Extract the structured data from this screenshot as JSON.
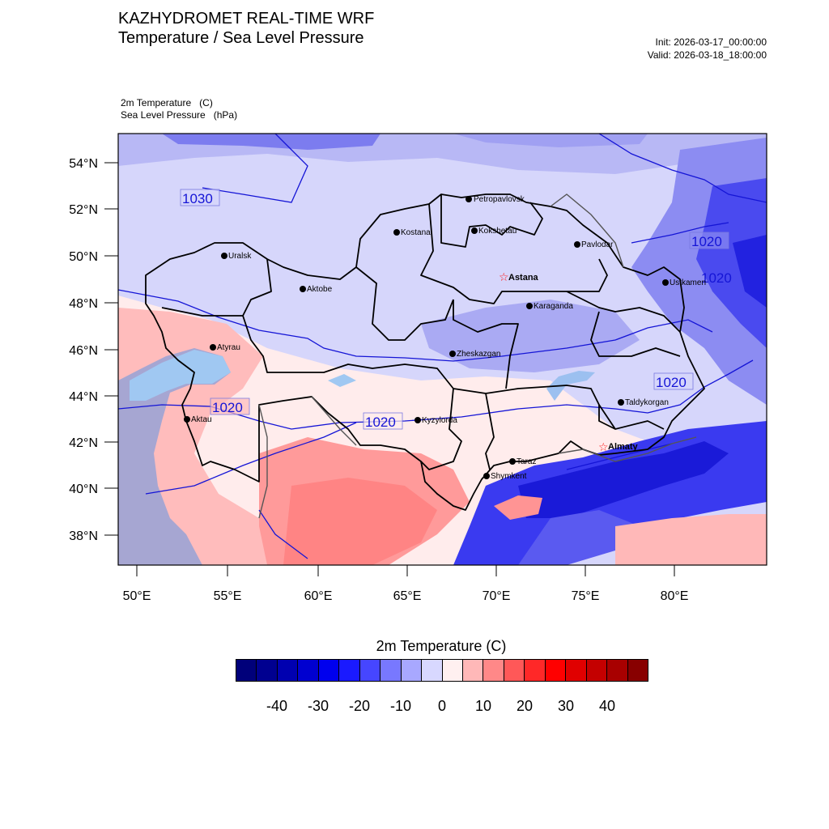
{
  "header": {
    "title_line1": "KAZHYDROMET REAL-TIME WRF",
    "title_line2": "Temperature / Sea Level Pressure",
    "init": "Init: 2026-03-17_00:00:00",
    "valid": "Valid: 2026-03-18_18:00:00"
  },
  "fields": {
    "temperature": "2m Temperature   (C)",
    "pressure": "Sea Level Pressure   (hPa)"
  },
  "map": {
    "lat_ticks": [
      "54°N",
      "52°N",
      "50°N",
      "48°N",
      "46°N",
      "44°N",
      "42°N",
      "40°N",
      "38°N"
    ],
    "lon_ticks": [
      "50°E",
      "55°E",
      "60°E",
      "65°E",
      "70°E",
      "75°E",
      "80°E"
    ],
    "isobar_labels": [
      "1030",
      "1020",
      "1020",
      "1020",
      "1020",
      "1020"
    ],
    "cities": [
      {
        "name": "Petropavlovsk",
        "capital": false
      },
      {
        "name": "Kostanai",
        "capital": false
      },
      {
        "name": "Kokshetau",
        "capital": false
      },
      {
        "name": "Pavlodar",
        "capital": false
      },
      {
        "name": "Uralsk",
        "capital": false
      },
      {
        "name": "Aktobe",
        "capital": false
      },
      {
        "name": "Astana",
        "capital": true
      },
      {
        "name": "Ustkamen",
        "capital": false
      },
      {
        "name": "Karaganda",
        "capital": false
      },
      {
        "name": "Atyrau",
        "capital": false
      },
      {
        "name": "Zheskazgan",
        "capital": false
      },
      {
        "name": "Taldykorgan",
        "capital": false
      },
      {
        "name": "Aktau",
        "capital": false
      },
      {
        "name": "Kyzylorda",
        "capital": false
      },
      {
        "name": "Almaty",
        "capital": true
      },
      {
        "name": "Taraz",
        "capital": false
      },
      {
        "name": "Shymkent",
        "capital": false
      }
    ]
  },
  "colorbar": {
    "title": "2m Temperature  (C)",
    "colors": [
      "#00007a",
      "#000090",
      "#0000b0",
      "#0000d0",
      "#0000ee",
      "#1a1aff",
      "#4646ff",
      "#7878ff",
      "#a8a8ff",
      "#d8d8ff",
      "#fff0f0",
      "#ffb8b8",
      "#ff8888",
      "#ff5858",
      "#ff2828",
      "#ff0000",
      "#e00000",
      "#c40000",
      "#a80000",
      "#880000"
    ],
    "labels": [
      "-40",
      "-30",
      "-20",
      "-10",
      "0",
      "10",
      "20",
      "30",
      "40"
    ]
  }
}
